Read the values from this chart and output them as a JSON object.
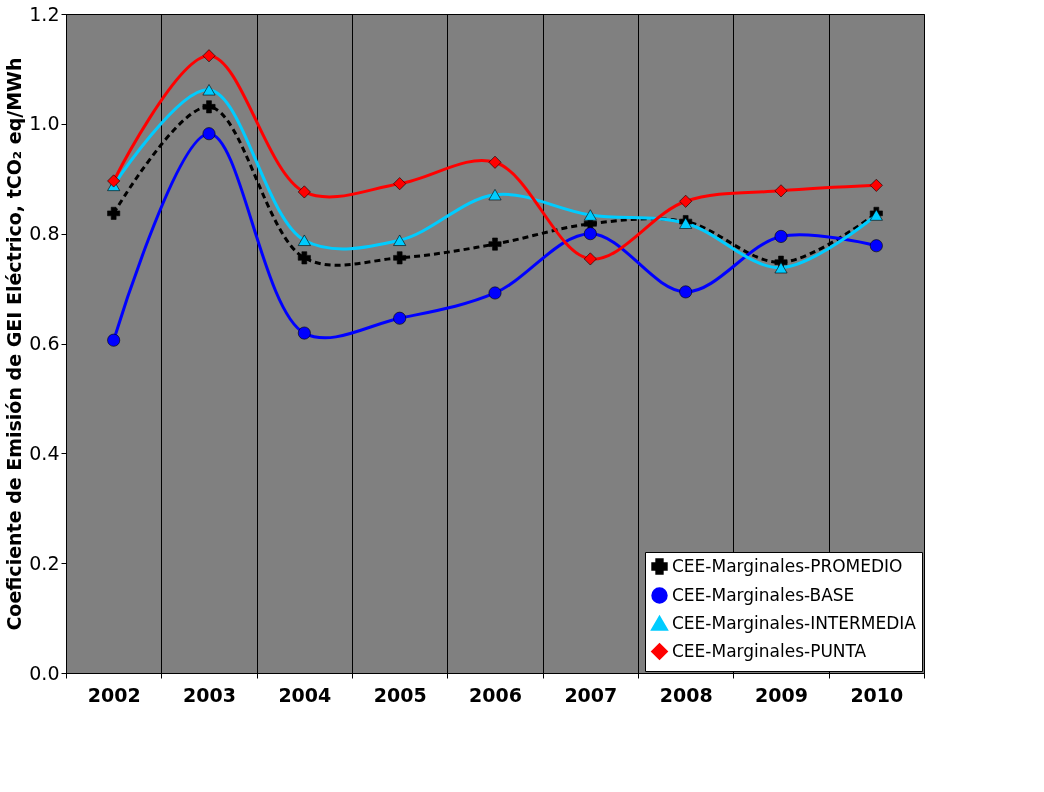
{
  "chart_data": {
    "type": "line",
    "ylabel": "Coeficiente de Emisión de GEI Eléctrico, tCO₂ eq/MWh",
    "categories": [
      "2002",
      "2003",
      "2004",
      "2005",
      "2006",
      "2007",
      "2008",
      "2009",
      "2010"
    ],
    "series": [
      {
        "name": "CEE-Marginales-PROMEDIO",
        "color": "#000000",
        "marker": "cross",
        "line_style": "dashed",
        "values": [
          0.837,
          1.031,
          0.756,
          0.756,
          0.781,
          0.818,
          0.822,
          0.748,
          0.837
        ]
      },
      {
        "name": "CEE-Marginales-BASE",
        "color": "#0000ff",
        "marker": "circle",
        "line_style": "solid",
        "values": [
          0.606,
          0.982,
          0.619,
          0.646,
          0.692,
          0.8,
          0.694,
          0.795,
          0.778
        ]
      },
      {
        "name": "CEE-Marginales-INTERMEDIA",
        "color": "#00ccff",
        "marker": "triangle",
        "line_style": "solid",
        "values": [
          0.888,
          1.062,
          0.788,
          0.788,
          0.871,
          0.834,
          0.819,
          0.738,
          0.834
        ]
      },
      {
        "name": "CEE-Marginales-PUNTA",
        "color": "#ff0000",
        "marker": "diamond",
        "line_style": "solid",
        "values": [
          0.896,
          1.124,
          0.876,
          0.891,
          0.93,
          0.754,
          0.859,
          0.878,
          0.888
        ]
      }
    ],
    "ylim": [
      0,
      1.2
    ],
    "yticks": [
      {
        "value": 0,
        "label": "0.0"
      },
      {
        "value": 0.2,
        "label": "0.2"
      },
      {
        "value": 0.4,
        "label": "0.4"
      },
      {
        "value": 0.6,
        "label": "0.6"
      },
      {
        "value": 0.8,
        "label": "0.8"
      },
      {
        "value": 1.0,
        "label": "1.0"
      },
      {
        "value": 1.2,
        "label": "1.2"
      }
    ],
    "grid": "x",
    "legend": "bottom right"
  }
}
